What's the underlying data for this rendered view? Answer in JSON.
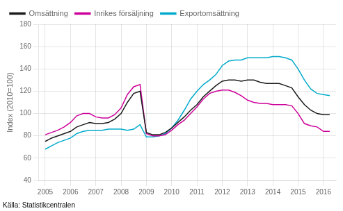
{
  "chart_data": {
    "type": "line",
    "ylabel": "Index (2010=100)",
    "source": "Källa: Statistikcentralen",
    "x": [
      2005.0,
      2005.25,
      2005.5,
      2005.75,
      2006.0,
      2006.25,
      2006.5,
      2006.75,
      2007.0,
      2007.25,
      2007.5,
      2007.75,
      2008.0,
      2008.25,
      2008.5,
      2008.75,
      2009.0,
      2009.25,
      2009.5,
      2009.75,
      2010.0,
      2010.25,
      2010.5,
      2010.75,
      2011.0,
      2011.25,
      2011.5,
      2011.75,
      2012.0,
      2012.25,
      2012.5,
      2012.75,
      2013.0,
      2013.25,
      2013.5,
      2013.75,
      2014.0,
      2014.25,
      2014.5,
      2014.75,
      2015.0,
      2015.25,
      2015.5,
      2015.75,
      2016.0,
      2016.25
    ],
    "series": [
      {
        "name": "Omsättning",
        "color": "#1a1a1a",
        "values": [
          75,
          78,
          80,
          82,
          84,
          88,
          90,
          92,
          91,
          91,
          92,
          95,
          100,
          110,
          118,
          120,
          83,
          81,
          81,
          83,
          87,
          92,
          97,
          103,
          108,
          115,
          120,
          125,
          129,
          130,
          130,
          129,
          130,
          130,
          128,
          127,
          127,
          127,
          125,
          123,
          115,
          108,
          103,
          100,
          99,
          99
        ]
      },
      {
        "name": "Inrikes försäljning",
        "color": "#cc0099",
        "values": [
          81,
          83,
          85,
          88,
          92,
          98,
          100,
          100,
          97,
          96,
          96,
          99,
          105,
          117,
          124,
          126,
          82,
          80,
          80,
          81,
          85,
          90,
          94,
          100,
          106,
          113,
          118,
          120,
          121,
          121,
          119,
          116,
          112,
          110,
          109,
          109,
          108,
          108,
          108,
          107,
          100,
          91,
          89,
          88,
          84,
          84
        ]
      },
      {
        "name": "Exportomsättning",
        "color": "#00aacc",
        "values": [
          68,
          71,
          74,
          76,
          78,
          82,
          84,
          85,
          85,
          85,
          86,
          86,
          86,
          85,
          86,
          90,
          79,
          79,
          80,
          82,
          87,
          94,
          103,
          113,
          120,
          126,
          130,
          135,
          143,
          147,
          148,
          148,
          150,
          150,
          150,
          150,
          151,
          151,
          150,
          148,
          140,
          130,
          122,
          118,
          117,
          116
        ]
      }
    ],
    "xlim": [
      2004.75,
      2016.5
    ],
    "xticks": [
      2005,
      2006,
      2007,
      2008,
      2009,
      2010,
      2011,
      2012,
      2013,
      2014,
      2015,
      2016
    ],
    "ylim": [
      40,
      180
    ],
    "yticks": [
      40,
      60,
      80,
      100,
      120,
      140,
      160,
      180
    ],
    "grid": true,
    "legend": "upper left"
  }
}
